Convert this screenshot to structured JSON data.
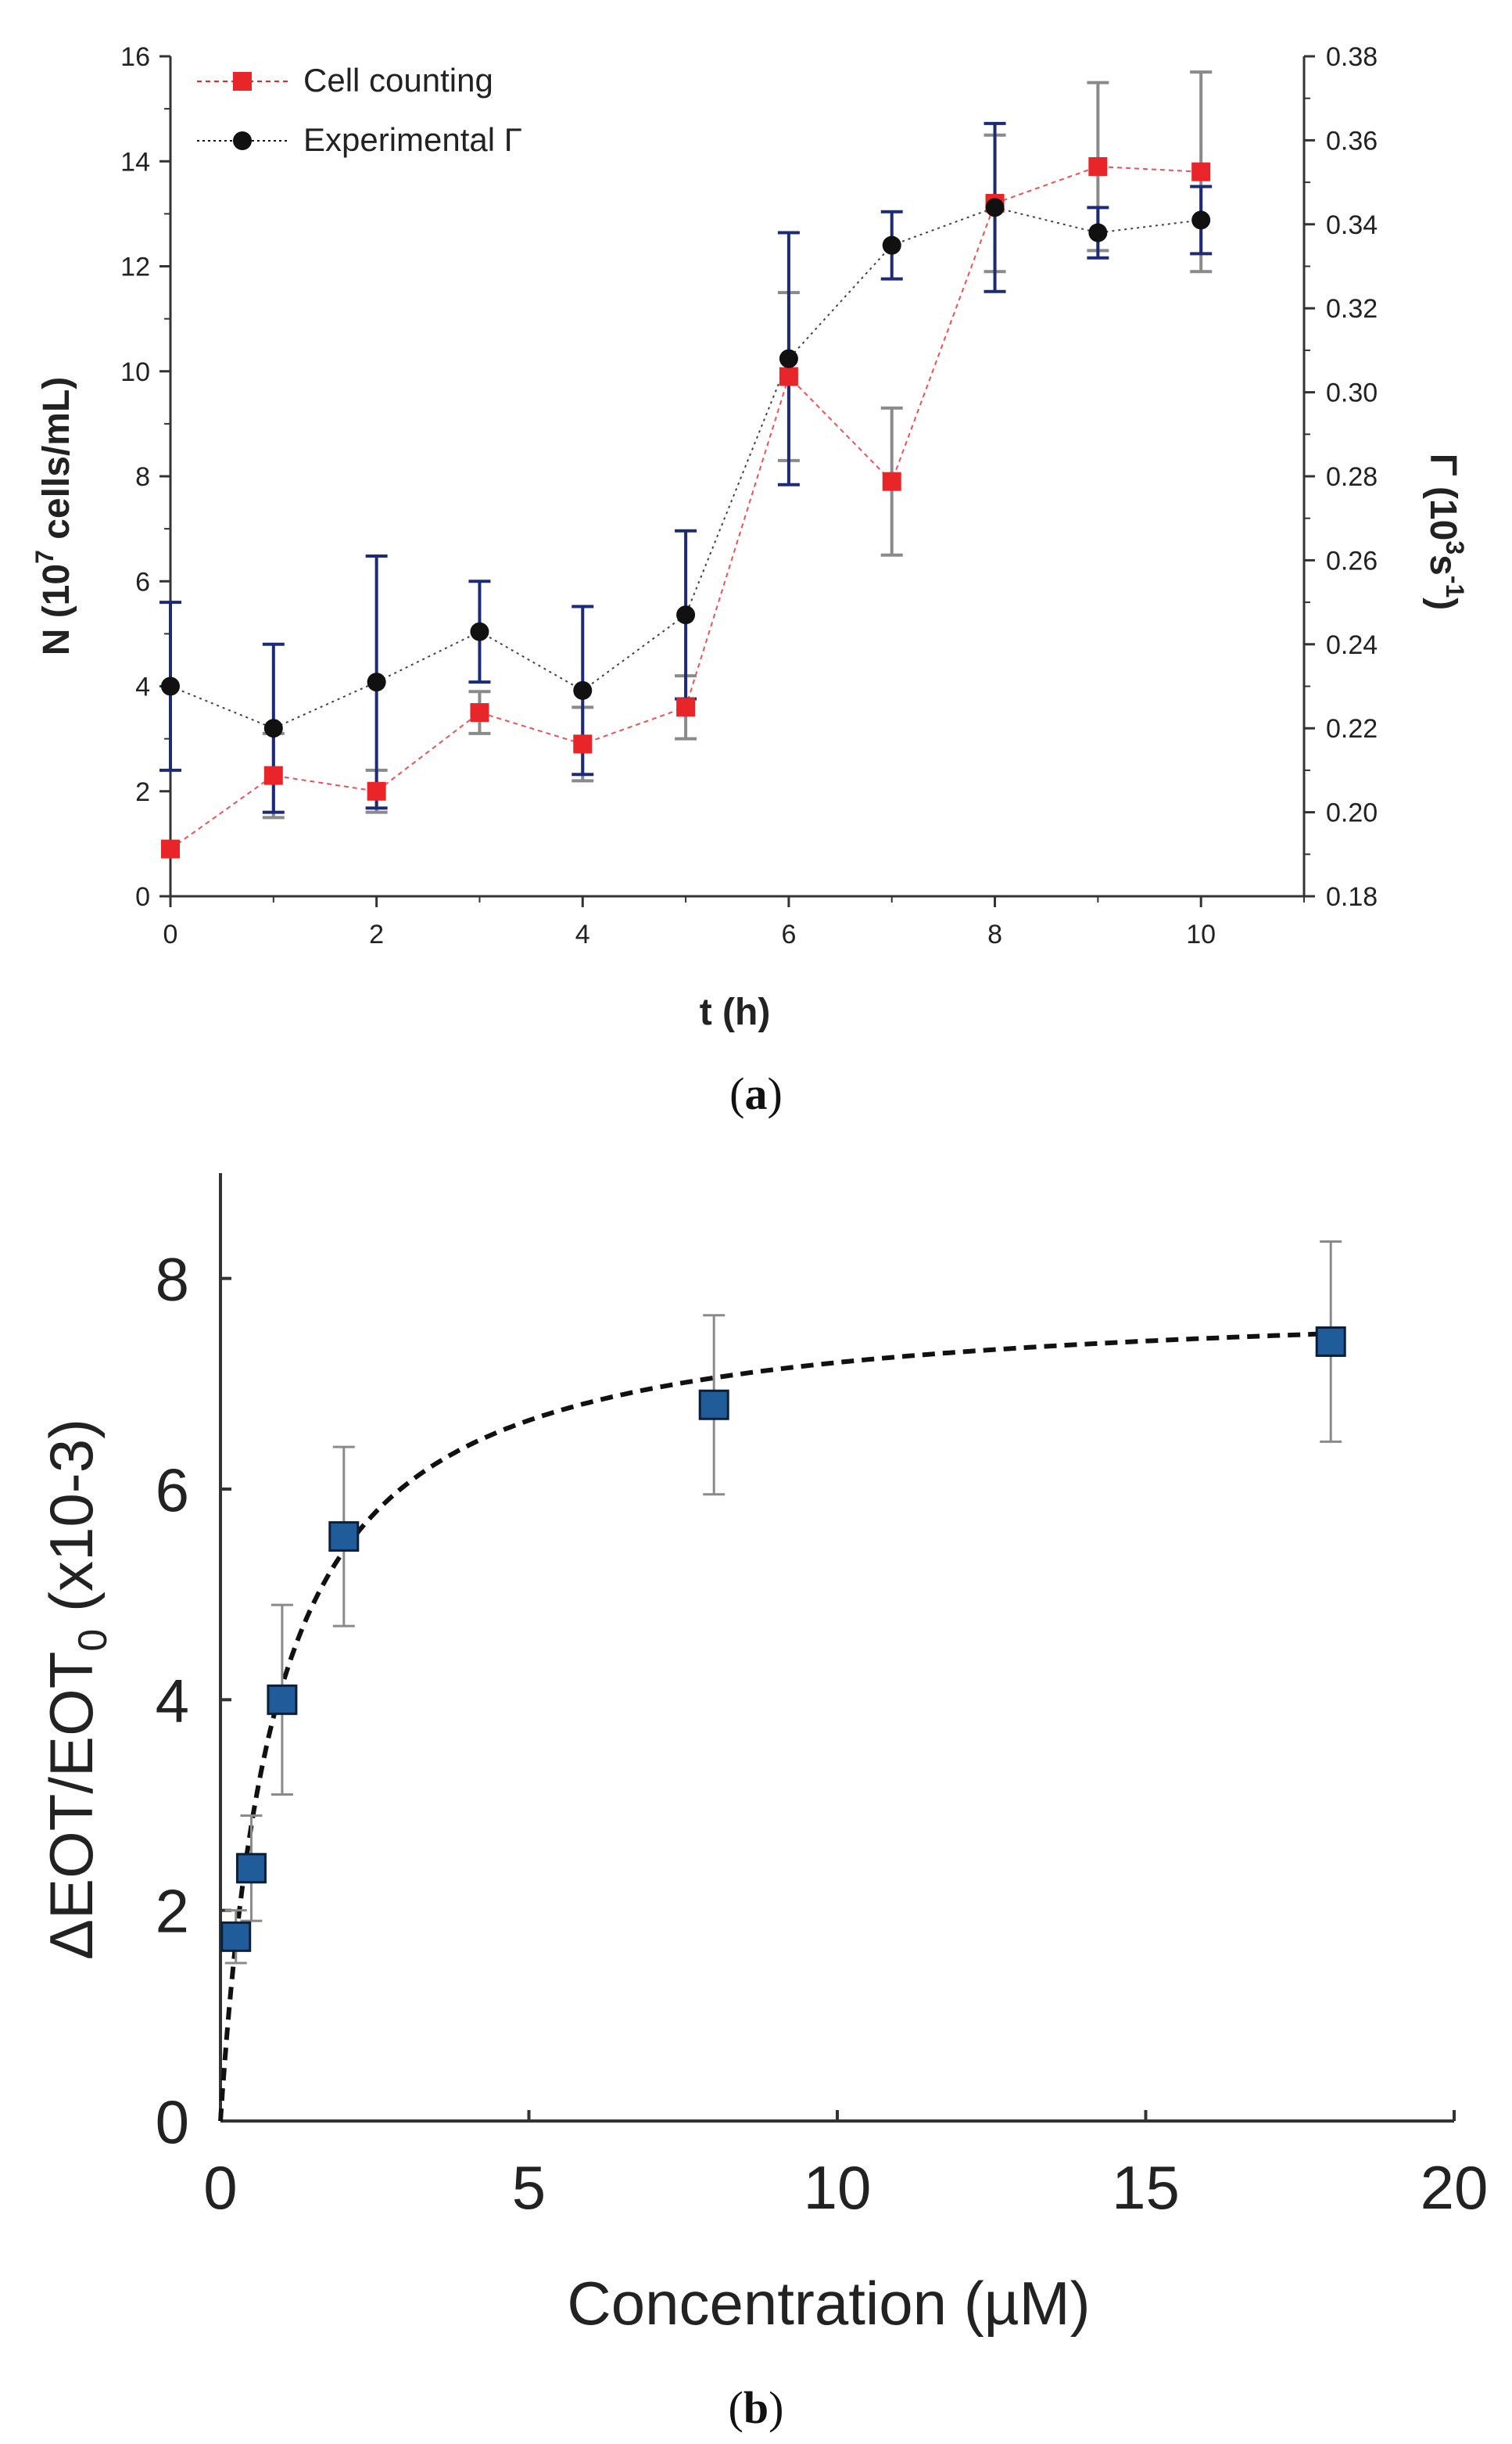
{
  "chart_data": [
    {
      "type": "line",
      "panel_label": "a",
      "title": "",
      "xlabel": "t (h)",
      "ylabel": {
        "prefix": "N (10",
        "sup": "7",
        "suffix": " cells/mL)"
      },
      "ylabel_right": {
        "prefix": "Γ (10",
        "sup": "3",
        "mid": "s",
        "sup2": "-1",
        "suffix": ")"
      },
      "xlim": [
        0,
        11
      ],
      "ylim": [
        0,
        16
      ],
      "ylim_right": [
        0.18,
        0.38
      ],
      "x_ticks": [
        "0",
        "2",
        "4",
        "6",
        "8",
        "10"
      ],
      "y_ticks": [
        "0",
        "2",
        "4",
        "6",
        "8",
        "10",
        "12",
        "14",
        "16"
      ],
      "y_ticks_right": [
        "0.18",
        "0.20",
        "0.22",
        "0.24",
        "0.26",
        "0.28",
        "0.30",
        "0.32",
        "0.34",
        "0.36",
        "0.38"
      ],
      "legend_position": "top-left",
      "series": [
        {
          "name": "Cell counting",
          "axis": "left",
          "color": "#e8262a",
          "err_color": "#8a8a8a",
          "marker": "square",
          "x": [
            0,
            1,
            2,
            3,
            4,
            5,
            6,
            7,
            8,
            9,
            10
          ],
          "values": [
            0.9,
            2.3,
            2.0,
            3.5,
            2.9,
            3.6,
            9.9,
            7.9,
            13.2,
            13.9,
            13.8
          ],
          "errors": [
            0.0,
            0.8,
            0.4,
            0.4,
            0.7,
            0.6,
            1.6,
            1.4,
            1.3,
            1.6,
            1.9
          ]
        },
        {
          "name": "Experimental Γ",
          "axis": "right",
          "color": "#111111",
          "err_color": "#1d2a78",
          "marker": "circle",
          "x": [
            0,
            1,
            2,
            3,
            4,
            5,
            6,
            7,
            8,
            9,
            10
          ],
          "values": [
            0.23,
            0.22,
            0.231,
            0.243,
            0.229,
            0.247,
            0.308,
            0.335,
            0.344,
            0.338,
            0.341
          ],
          "errors": [
            0.02,
            0.02,
            0.03,
            0.012,
            0.02,
            0.02,
            0.03,
            0.008,
            0.02,
            0.006,
            0.008
          ]
        }
      ]
    },
    {
      "type": "scatter",
      "panel_label": "b",
      "title": "",
      "xlabel": "Concentration (µM)",
      "ylabel": {
        "prefix": "ΔEOT/EOT",
        "sub": "0",
        "suffix": " (x10-3)"
      },
      "xlim": [
        0,
        20
      ],
      "ylim": [
        0,
        9
      ],
      "x_ticks": [
        "0",
        "5",
        "10",
        "15",
        "20"
      ],
      "y_ticks": [
        "0",
        "2",
        "4",
        "6",
        "8"
      ],
      "series": [
        {
          "name": "data",
          "color": "#1f5c99",
          "err_color": "#8a8a8a",
          "marker": "square",
          "x": [
            0.25,
            0.5,
            1,
            2,
            8,
            18
          ],
          "values": [
            1.75,
            2.4,
            4.0,
            5.55,
            6.8,
            7.4
          ],
          "errors": [
            0.25,
            0.5,
            0.9,
            0.85,
            0.85,
            0.95
          ]
        }
      ],
      "fit": {
        "type": "langmuir",
        "line_style": "dashed",
        "bmax": 7.85,
        "kd": 0.9
      }
    }
  ]
}
